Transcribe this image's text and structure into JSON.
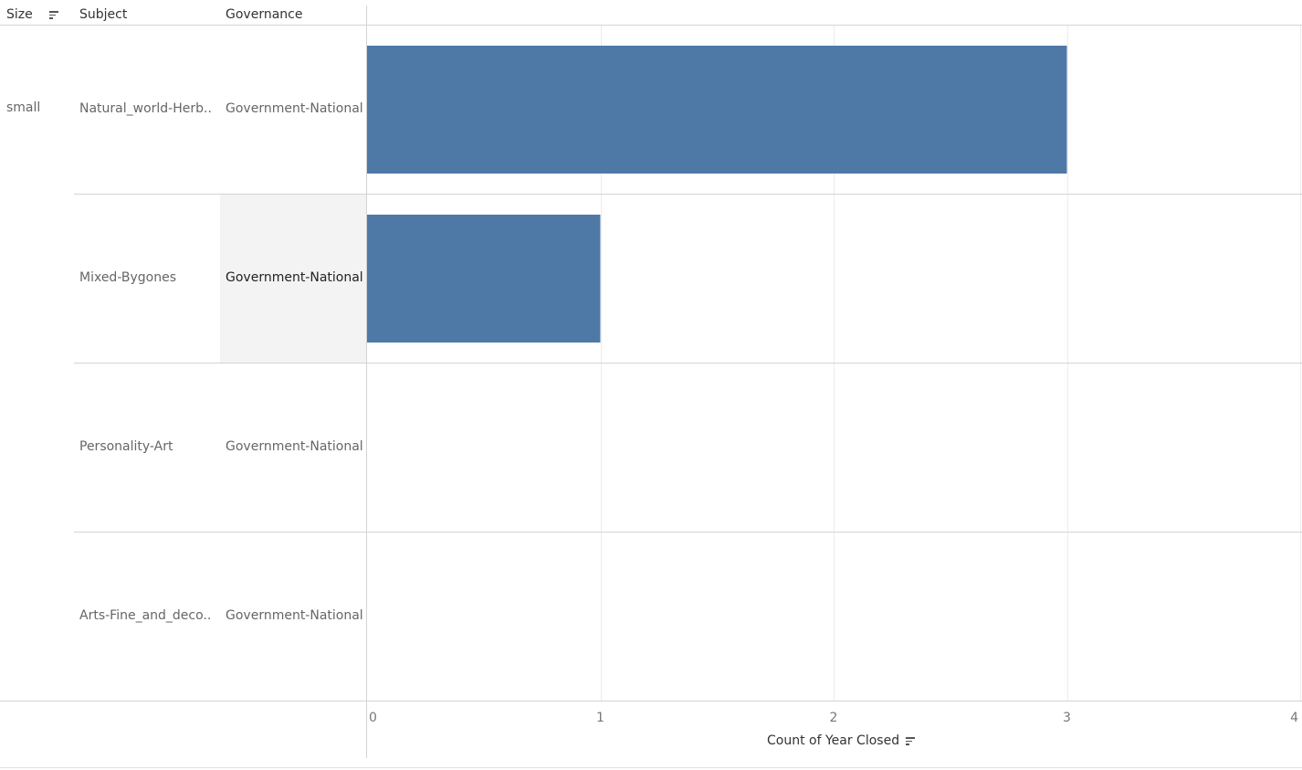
{
  "headers": {
    "size": "Size",
    "subject": "Subject",
    "governance": "Governance"
  },
  "size_value": "small",
  "rows": [
    {
      "subject": "Natural_world-Herb..",
      "governance": "Government-National"
    },
    {
      "subject": "Mixed-Bygones",
      "governance": "Government-National"
    },
    {
      "subject": "Personality-Art",
      "governance": "Government-National"
    },
    {
      "subject": "Arts-Fine_and_deco..",
      "governance": "Government-National"
    }
  ],
  "x_axis_title": "Count of Year Closed",
  "colors": {
    "bar": "#4e79a7",
    "highlight": "#f3f3f3"
  },
  "chart_data": {
    "type": "bar",
    "orientation": "horizontal",
    "categories": [
      "Natural_world-Herb..",
      "Mixed-Bygones",
      "Personality-Art",
      "Arts-Fine_and_deco.."
    ],
    "values": [
      3,
      1,
      0,
      0
    ],
    "xlabel": "Count of Year Closed",
    "xlim": [
      0,
      4
    ],
    "xticks": [
      "0",
      "1",
      "2",
      "3",
      "4"
    ],
    "grid": true
  }
}
